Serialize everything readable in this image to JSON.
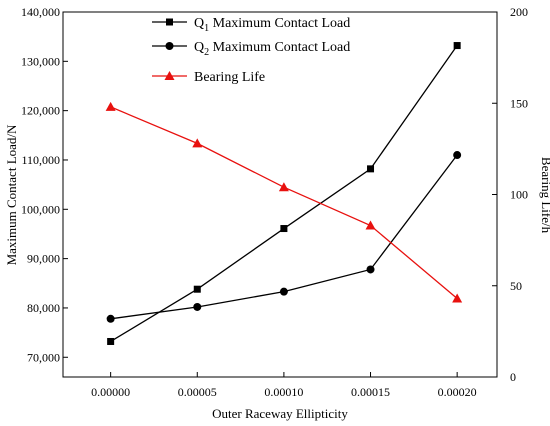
{
  "chart_data": {
    "type": "line",
    "xlabel": "Outer Raceway Ellipticity",
    "ylabel_left": "Maximum Contact Load/N",
    "ylabel_right": "Bearing Life/h",
    "x": [
      0.0,
      5e-05,
      0.0001,
      0.00015,
      0.0002
    ],
    "x_tick_labels": [
      "0.00000",
      "0.00005",
      "0.00010",
      "0.00015",
      "0.00020"
    ],
    "xlim": [
      -2.75e-05,
      0.000223
    ],
    "ylim_left": [
      66000,
      140000
    ],
    "y_left_ticks": [
      70000,
      80000,
      90000,
      100000,
      110000,
      120000,
      130000,
      140000
    ],
    "y_left_tick_labels": [
      "70,000",
      "80,000",
      "90,000",
      "100,000",
      "110,000",
      "120,000",
      "130,000",
      "140,000"
    ],
    "ylim_right": [
      0,
      200
    ],
    "y_right_ticks": [
      0,
      50,
      100,
      150,
      200
    ],
    "y_right_tick_labels": [
      "0",
      "50",
      "100",
      "150",
      "200"
    ],
    "grid": false,
    "legend_position": "top-right",
    "series": [
      {
        "name": "Q",
        "name_sub": "1",
        "name_rest": " Maximum Contact Load",
        "axis": "left",
        "marker": "square",
        "color": "#000000",
        "values": [
          73200,
          83800,
          96100,
          108200,
          133200
        ]
      },
      {
        "name": "Q",
        "name_sub": "2",
        "name_rest": " Maximum Contact Load",
        "axis": "left",
        "marker": "circle",
        "color": "#000000",
        "values": [
          77800,
          80200,
          83300,
          87800,
          111000
        ]
      },
      {
        "name": "Bearing Life",
        "axis": "right",
        "marker": "triangle",
        "color": "#e8110f",
        "values": [
          148,
          128,
          104,
          83,
          43
        ]
      }
    ]
  }
}
